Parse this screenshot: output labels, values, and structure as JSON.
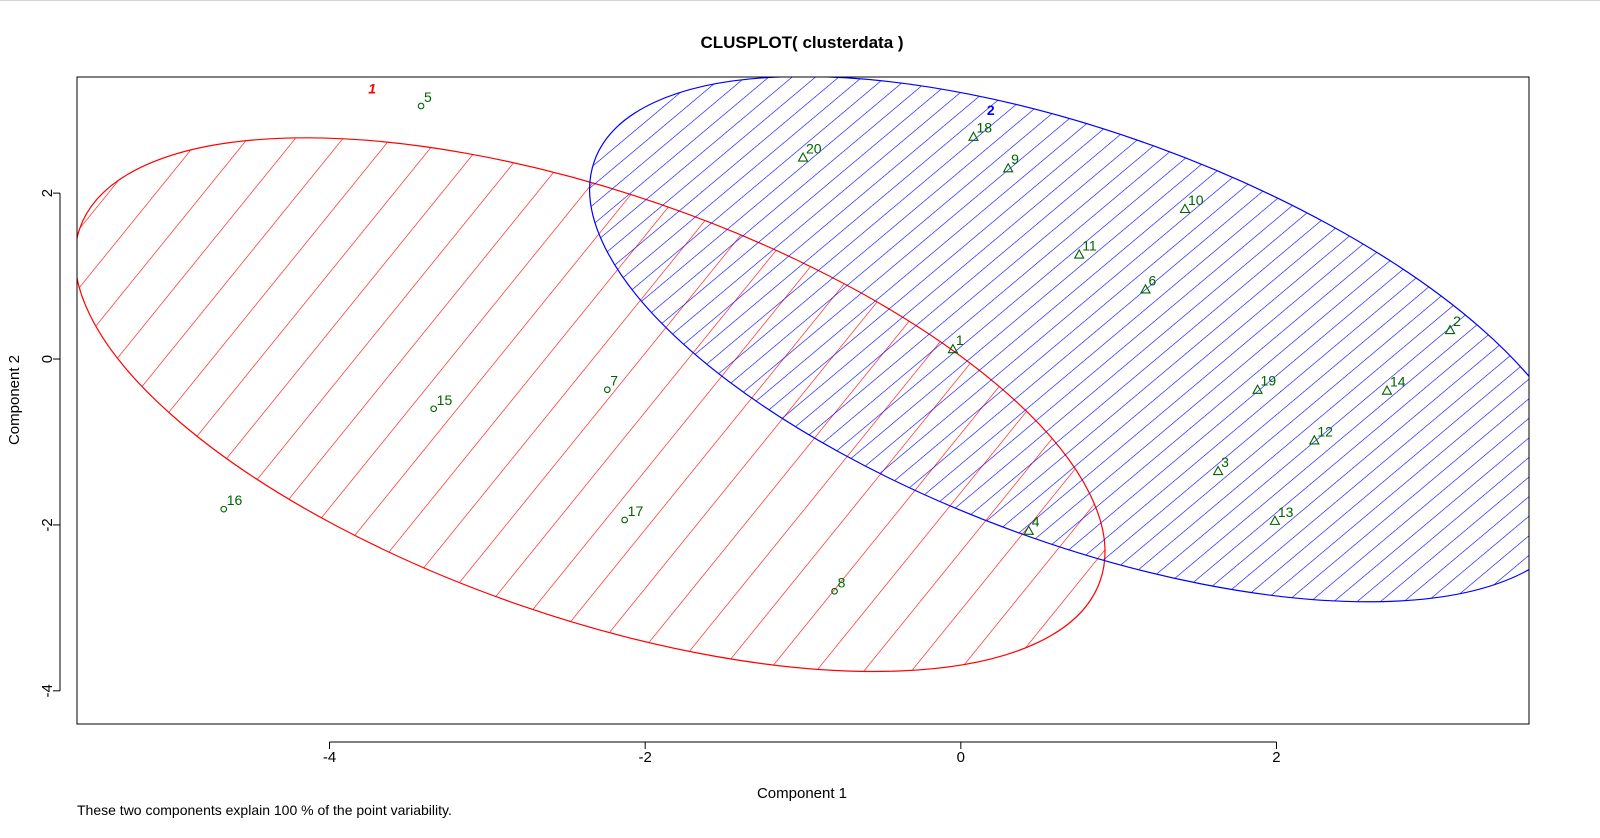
{
  "chart_data": {
    "type": "scatter",
    "title": "CLUSPLOT( clusterdata )",
    "xlabel": "Component 1",
    "ylabel": "Component 2",
    "footnote": "These two components explain 100 % of the point variability.",
    "xlim": [
      -5.6,
      3.6
    ],
    "ylim": [
      -4.4,
      3.4
    ],
    "x_ticks": [
      -4,
      -2,
      0,
      2
    ],
    "x_tick_labels": [
      "-4",
      "-2",
      "0",
      "2"
    ],
    "y_ticks": [
      -4,
      -2,
      0,
      2
    ],
    "y_tick_labels": [
      "-4",
      "-2",
      "0",
      "2"
    ],
    "grid": false,
    "point_label_color": "#006400",
    "clusters": [
      {
        "id": "1",
        "color": "#ff0000",
        "marker": "circle",
        "hatch_angle_deg": 70,
        "hatch_spacing_px": 37,
        "ellipse": {
          "cx": -2.35,
          "cy": -0.55,
          "a": 3.42,
          "b": 2.56,
          "angle_deg": -19
        },
        "label_pos": {
          "x": -3.73,
          "y": 3.2
        },
        "points": [
          {
            "label": "5",
            "x": -3.42,
            "y": 3.05
          },
          {
            "label": "7",
            "x": -2.24,
            "y": -0.37
          },
          {
            "label": "15",
            "x": -3.34,
            "y": -0.6
          },
          {
            "label": "16",
            "x": -4.67,
            "y": -1.81
          },
          {
            "label": "17",
            "x": -2.13,
            "y": -1.94
          },
          {
            "label": "8",
            "x": -0.8,
            "y": -2.8
          }
        ]
      },
      {
        "id": "2",
        "color": "#0000ff",
        "marker": "triangle",
        "hatch_angle_deg": 60,
        "hatch_spacing_px": 15,
        "ellipse": {
          "cx": 0.79,
          "cy": 0.24,
          "a": 3.31,
          "b": 2.47,
          "angle_deg": -20
        },
        "label_pos": {
          "x": 0.19,
          "y": 2.94
        },
        "points": [
          {
            "label": "18",
            "x": 0.08,
            "y": 2.68
          },
          {
            "label": "20",
            "x": -1.0,
            "y": 2.43
          },
          {
            "label": "9",
            "x": 0.3,
            "y": 2.3
          },
          {
            "label": "10",
            "x": 1.42,
            "y": 1.81
          },
          {
            "label": "11",
            "x": 0.75,
            "y": 1.26
          },
          {
            "label": "6",
            "x": 1.17,
            "y": 0.84
          },
          {
            "label": "1",
            "x": -0.05,
            "y": 0.12
          },
          {
            "label": "2",
            "x": 3.1,
            "y": 0.35
          },
          {
            "label": "19",
            "x": 1.88,
            "y": -0.37
          },
          {
            "label": "14",
            "x": 2.7,
            "y": -0.38
          },
          {
            "label": "12",
            "x": 2.24,
            "y": -0.98
          },
          {
            "label": "3",
            "x": 1.63,
            "y": -1.35
          },
          {
            "label": "13",
            "x": 1.99,
            "y": -1.95
          },
          {
            "label": "4",
            "x": 0.43,
            "y": -2.07
          }
        ]
      }
    ]
  }
}
